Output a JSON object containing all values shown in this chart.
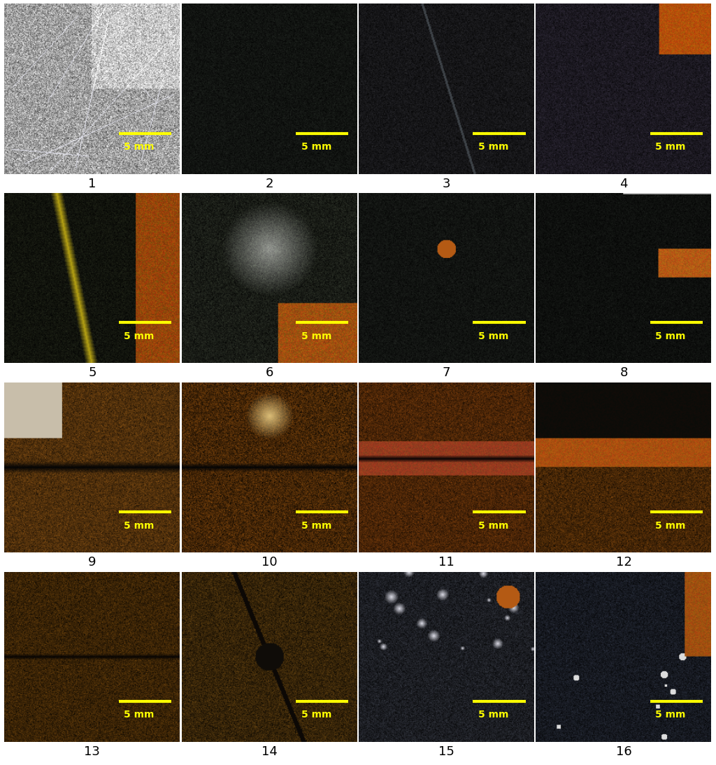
{
  "grid_rows": 4,
  "grid_cols": 4,
  "labels": [
    "1",
    "2",
    "3",
    "4",
    "5",
    "6",
    "7",
    "8",
    "9",
    "10",
    "11",
    "12",
    "13",
    "14",
    "15",
    "16"
  ],
  "scale_text": "5 mm",
  "scale_color": "#FFFF00",
  "label_color": "#000000",
  "background_color": "#FFFFFF",
  "image_colors": [
    {
      "base": [
        180,
        180,
        180
      ],
      "style": "metallic"
    },
    {
      "base": [
        20,
        25,
        20
      ],
      "style": "dark"
    },
    {
      "base": [
        20,
        25,
        20
      ],
      "style": "dark_scratch"
    },
    {
      "base": [
        30,
        40,
        45
      ],
      "style": "dark_orange_corner"
    },
    {
      "base": [
        20,
        25,
        15
      ],
      "style": "dark_yellow_streak"
    },
    {
      "base": [
        25,
        30,
        20
      ],
      "style": "dark_orange_spot"
    },
    {
      "base": [
        20,
        25,
        20
      ],
      "style": "dark_orange_dot"
    },
    {
      "base": [
        15,
        20,
        15
      ],
      "style": "dark_orange_edge"
    },
    {
      "base": [
        60,
        50,
        20
      ],
      "style": "rust_crack"
    },
    {
      "base": [
        50,
        40,
        15
      ],
      "style": "rust_crack_bright"
    },
    {
      "base": [
        55,
        45,
        20
      ],
      "style": "rust_crack_red"
    },
    {
      "base": [
        60,
        45,
        15
      ],
      "style": "rust_crack_top"
    },
    {
      "base": [
        55,
        40,
        20
      ],
      "style": "rust_crack_narrow"
    },
    {
      "base": [
        40,
        35,
        15
      ],
      "style": "rust_scratch_spot"
    },
    {
      "base": [
        25,
        30,
        40
      ],
      "style": "dark_bubbles"
    },
    {
      "base": [
        20,
        25,
        35
      ],
      "style": "dark_blue_rust"
    }
  ]
}
